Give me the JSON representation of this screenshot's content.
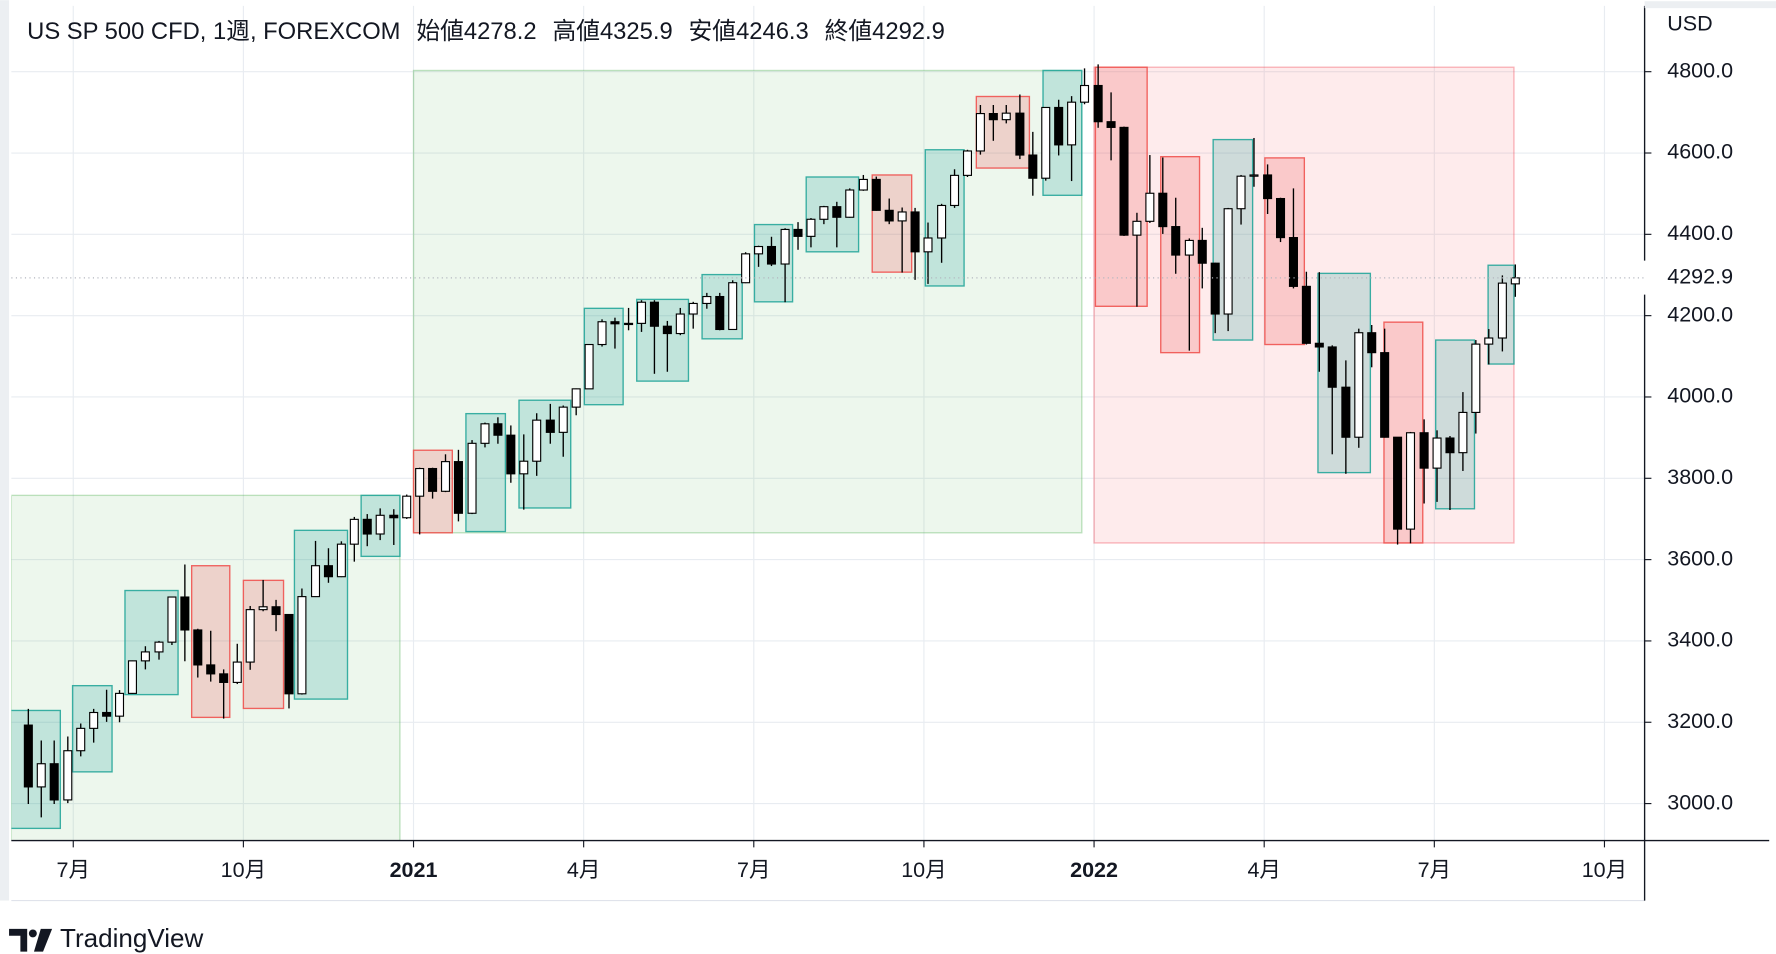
{
  "chart_data": {
    "type": "candlestick",
    "title": "US SP 500 CFD, 1週, FOREXCOM",
    "legend_labels": [
      "始値",
      "高値",
      "安値",
      "終値"
    ],
    "currency": "USD",
    "watermark": "TradingView",
    "x": [
      2020.434,
      2020.453,
      2020.472,
      2020.492,
      2020.511,
      2020.53,
      2020.549,
      2020.568,
      2020.587,
      2020.606,
      2020.626,
      2020.645,
      2020.664,
      2020.683,
      2020.702,
      2020.721,
      2020.741,
      2020.76,
      2020.779,
      2020.798,
      2020.817,
      2020.836,
      2020.856,
      2020.875,
      2020.894,
      2020.913,
      2020.932,
      2020.951,
      2020.971,
      2020.99,
      2021.009,
      2021.028,
      2021.047,
      2021.066,
      2021.086,
      2021.105,
      2021.124,
      2021.143,
      2021.162,
      2021.181,
      2021.201,
      2021.22,
      2021.239,
      2021.258,
      2021.277,
      2021.296,
      2021.316,
      2021.335,
      2021.354,
      2021.373,
      2021.392,
      2021.411,
      2021.431,
      2021.45,
      2021.469,
      2021.488,
      2021.507,
      2021.526,
      2021.546,
      2021.565,
      2021.584,
      2021.603,
      2021.622,
      2021.641,
      2021.661,
      2021.68,
      2021.699,
      2021.718,
      2021.737,
      2021.756,
      2021.776,
      2021.795,
      2021.814,
      2021.833,
      2021.852,
      2021.871,
      2021.891,
      2021.91,
      2021.929,
      2021.948,
      2021.967,
      2021.986,
      2022.006,
      2022.025,
      2022.044,
      2022.063,
      2022.082,
      2022.101,
      2022.12,
      2022.14,
      2022.159,
      2022.178,
      2022.197,
      2022.216,
      2022.235,
      2022.255,
      2022.274,
      2022.293,
      2022.312,
      2022.331,
      2022.35,
      2022.37,
      2022.389,
      2022.408,
      2022.427,
      2022.446,
      2022.465,
      2022.485,
      2022.504,
      2022.523,
      2022.542,
      2022.561,
      2022.58,
      2022.6,
      2022.619
    ],
    "ohlc": [
      [
        3193,
        3233,
        2999,
        3041
      ],
      [
        3041,
        3155,
        2966,
        3098
      ],
      [
        3098,
        3155,
        2999,
        3009
      ],
      [
        3009,
        3165,
        3001,
        3130
      ],
      [
        3130,
        3197,
        3116,
        3185
      ],
      [
        3185,
        3233,
        3150,
        3224
      ],
      [
        3224,
        3280,
        3201,
        3215
      ],
      [
        3215,
        3279,
        3200,
        3271
      ],
      [
        3271,
        3352,
        3270,
        3351
      ],
      [
        3351,
        3387,
        3330,
        3373
      ],
      [
        3373,
        3400,
        3354,
        3397
      ],
      [
        3397,
        3509,
        3390,
        3508
      ],
      [
        3508,
        3588,
        3350,
        3427
      ],
      [
        3427,
        3430,
        3310,
        3341
      ],
      [
        3341,
        3425,
        3300,
        3319
      ],
      [
        3319,
        3330,
        3209,
        3298
      ],
      [
        3298,
        3393,
        3294,
        3348
      ],
      [
        3348,
        3486,
        3329,
        3477
      ],
      [
        3477,
        3550,
        3473,
        3484
      ],
      [
        3484,
        3501,
        3424,
        3465
      ],
      [
        3465,
        3466,
        3234,
        3270
      ],
      [
        3270,
        3529,
        3268,
        3509
      ],
      [
        3509,
        3646,
        3508,
        3585
      ],
      [
        3585,
        3628,
        3543,
        3558
      ],
      [
        3558,
        3645,
        3557,
        3638
      ],
      [
        3638,
        3705,
        3595,
        3699
      ],
      [
        3699,
        3712,
        3633,
        3663
      ],
      [
        3663,
        3726,
        3648,
        3709
      ],
      [
        3709,
        3724,
        3636,
        3703
      ],
      [
        3703,
        3760,
        3700,
        3756
      ],
      [
        3756,
        3826,
        3662,
        3824
      ],
      [
        3824,
        3826,
        3750,
        3768
      ],
      [
        3768,
        3859,
        3766,
        3841
      ],
      [
        3841,
        3870,
        3694,
        3714
      ],
      [
        3714,
        3894,
        3712,
        3886
      ],
      [
        3886,
        3937,
        3876,
        3934
      ],
      [
        3934,
        3950,
        3885,
        3906
      ],
      [
        3906,
        3930,
        3789,
        3811
      ],
      [
        3811,
        3908,
        3723,
        3842
      ],
      [
        3842,
        3960,
        3806,
        3943
      ],
      [
        3943,
        3983,
        3885,
        3913
      ],
      [
        3913,
        3979,
        3853,
        3975
      ],
      [
        3975,
        4021,
        3955,
        4020
      ],
      [
        4020,
        4130,
        4020,
        4129
      ],
      [
        4129,
        4191,
        4124,
        4185
      ],
      [
        4185,
        4195,
        4119,
        4180
      ],
      [
        4180,
        4219,
        4164,
        4181
      ],
      [
        4181,
        4238,
        4160,
        4233
      ],
      [
        4233,
        4238,
        4057,
        4174
      ],
      [
        4174,
        4187,
        4062,
        4156
      ],
      [
        4156,
        4219,
        4152,
        4204
      ],
      [
        4204,
        4234,
        4168,
        4230
      ],
      [
        4230,
        4256,
        4217,
        4247
      ],
      [
        4247,
        4256,
        4164,
        4166
      ],
      [
        4166,
        4287,
        4165,
        4281
      ],
      [
        4281,
        4356,
        4280,
        4352
      ],
      [
        4352,
        4372,
        4320,
        4370
      ],
      [
        4370,
        4394,
        4322,
        4327
      ],
      [
        4327,
        4415,
        4233,
        4412
      ],
      [
        4412,
        4430,
        4362,
        4395
      ],
      [
        4395,
        4440,
        4368,
        4437
      ],
      [
        4437,
        4470,
        4425,
        4468
      ],
      [
        4468,
        4480,
        4368,
        4442
      ],
      [
        4442,
        4513,
        4441,
        4509
      ],
      [
        4509,
        4546,
        4507,
        4535
      ],
      [
        4535,
        4542,
        4458,
        4459
      ],
      [
        4459,
        4488,
        4425,
        4433
      ],
      [
        4433,
        4466,
        4306,
        4455
      ],
      [
        4455,
        4465,
        4288,
        4357
      ],
      [
        4357,
        4429,
        4278,
        4391
      ],
      [
        4391,
        4475,
        4330,
        4471
      ],
      [
        4471,
        4560,
        4465,
        4545
      ],
      [
        4545,
        4608,
        4541,
        4605
      ],
      [
        4605,
        4718,
        4596,
        4697
      ],
      [
        4697,
        4718,
        4630,
        4682
      ],
      [
        4682,
        4718,
        4673,
        4698
      ],
      [
        4698,
        4744,
        4585,
        4595
      ],
      [
        4595,
        4652,
        4495,
        4538
      ],
      [
        4538,
        4713,
        4532,
        4712
      ],
      [
        4712,
        4731,
        4594,
        4620
      ],
      [
        4620,
        4740,
        4531,
        4725
      ],
      [
        4725,
        4808,
        4720,
        4766
      ],
      [
        4766,
        4818,
        4662,
        4677
      ],
      [
        4677,
        4749,
        4582,
        4663
      ],
      [
        4663,
        4665,
        4396,
        4398
      ],
      [
        4398,
        4453,
        4222,
        4432
      ],
      [
        4432,
        4595,
        4428,
        4501
      ],
      [
        4501,
        4589,
        4401,
        4419
      ],
      [
        4419,
        4490,
        4303,
        4349
      ],
      [
        4349,
        4390,
        4114,
        4385
      ],
      [
        4385,
        4416,
        4267,
        4329
      ],
      [
        4329,
        4330,
        4157,
        4204
      ],
      [
        4204,
        4465,
        4162,
        4463
      ],
      [
        4463,
        4546,
        4424,
        4543
      ],
      [
        4543,
        4637,
        4517,
        4546
      ],
      [
        4546,
        4572,
        4450,
        4488
      ],
      [
        4488,
        4490,
        4381,
        4392
      ],
      [
        4392,
        4513,
        4267,
        4272
      ],
      [
        4272,
        4308,
        4129,
        4132
      ],
      [
        4132,
        4307,
        4062,
        4123
      ],
      [
        4123,
        4127,
        3859,
        4024
      ],
      [
        4024,
        4090,
        3811,
        3901
      ],
      [
        3901,
        4168,
        3875,
        4158
      ],
      [
        4158,
        4177,
        4073,
        4109
      ],
      [
        4109,
        4168,
        3900,
        3901
      ],
      [
        3901,
        3901,
        3637,
        3675
      ],
      [
        3675,
        3914,
        3640,
        3912
      ],
      [
        3912,
        3945,
        3738,
        3825
      ],
      [
        3825,
        3918,
        3742,
        3899
      ],
      [
        3899,
        3904,
        3722,
        3863
      ],
      [
        3863,
        4012,
        3818,
        3962
      ],
      [
        3962,
        4140,
        3910,
        4130
      ],
      [
        4130,
        4167,
        4080,
        4145
      ],
      [
        4145,
        4299,
        4112,
        4280
      ],
      [
        4278.2,
        4325.9,
        4246.3,
        4292.9
      ]
    ],
    "up_color": "#ffffff",
    "down_color": "#000000",
    "wick_color": "#000000",
    "xlim": [
      2020.409,
      2022.809
    ],
    "ylim": [
      2909,
      4962
    ],
    "xticks": [
      {
        "value": 2020.5,
        "label": "7月"
      },
      {
        "value": 2020.75,
        "label": "10月"
      },
      2021,
      {
        "value": 2021.25,
        "label": "4月"
      },
      {
        "value": 2021.5,
        "label": "7月"
      },
      {
        "value": 2021.75,
        "label": "10月"
      },
      2022,
      {
        "value": 2022.25,
        "label": "4月"
      },
      {
        "value": 2022.5,
        "label": "7月"
      },
      {
        "value": 2022.75,
        "label": "10月"
      }
    ],
    "yticks": [
      {
        "value": 3000,
        "label": "3000.0"
      },
      {
        "value": 3200,
        "label": "3200.0"
      },
      {
        "value": 3400,
        "label": "3400.0"
      },
      {
        "value": 3600,
        "label": "3600.0"
      },
      {
        "value": 3800,
        "label": "3800.0"
      },
      {
        "value": 4000,
        "label": "4000.0"
      },
      {
        "value": 4200,
        "label": "4200.0"
      },
      {
        "value": 4400,
        "label": "4400.0"
      },
      {
        "value": 4600,
        "label": "4600.0"
      },
      {
        "value": 4800,
        "label": "4800.0"
      }
    ],
    "grid": true,
    "year_boxes": [
      {
        "x": [
          2020.409,
          2020.98
        ],
        "y": [
          2900,
          3758
        ],
        "color": "#4caf50"
      },
      {
        "x": [
          2021.0,
          2021.982
        ],
        "y": [
          3666,
          4803
        ],
        "color": "#4caf50"
      },
      {
        "x": [
          2022.0,
          2022.617
        ],
        "y": [
          3641,
          4811
        ],
        "color": "#f23645"
      }
    ],
    "month_boxes": [
      {
        "x": [
          2020.406,
          2020.481
        ],
        "y": [
          2939,
          3229
        ],
        "color": "#26a69a"
      },
      {
        "x": [
          2020.499,
          2020.557
        ],
        "y": [
          3078,
          3290
        ],
        "color": "#26a69a"
      },
      {
        "x": [
          2020.576,
          2020.654
        ],
        "y": [
          3268,
          3524
        ],
        "color": "#26a69a"
      },
      {
        "x": [
          2020.674,
          2020.73
        ],
        "y": [
          3212,
          3585
        ],
        "color": "#ef5350"
      },
      {
        "x": [
          2020.75,
          2020.809
        ],
        "y": [
          3234,
          3549
        ],
        "color": "#ef5350"
      },
      {
        "x": [
          2020.825,
          2020.903
        ],
        "y": [
          3257,
          3672
        ],
        "color": "#26a69a"
      },
      {
        "x": [
          2020.923,
          2020.98
        ],
        "y": [
          3608,
          3758
        ],
        "color": "#26a69a"
      },
      {
        "x": [
          2021.0,
          2021.057
        ],
        "y": [
          3666,
          3869
        ],
        "color": "#ef5350"
      },
      {
        "x": [
          2021.077,
          2021.135
        ],
        "y": [
          3669,
          3959
        ],
        "color": "#26a69a"
      },
      {
        "x": [
          2021.155,
          2021.231
        ],
        "y": [
          3727,
          3992
        ],
        "color": "#26a69a"
      },
      {
        "x": [
          2021.251,
          2021.308
        ],
        "y": [
          3981,
          4218
        ],
        "color": "#26a69a"
      },
      {
        "x": [
          2021.328,
          2021.404
        ],
        "y": [
          4039,
          4240
        ],
        "color": "#26a69a"
      },
      {
        "x": [
          2021.424,
          2021.483
        ],
        "y": [
          4143,
          4301
        ],
        "color": "#26a69a"
      },
      {
        "x": [
          2021.501,
          2021.557
        ],
        "y": [
          4234,
          4424
        ],
        "color": "#26a69a"
      },
      {
        "x": [
          2021.577,
          2021.654
        ],
        "y": [
          4357,
          4541
        ],
        "color": "#26a69a"
      },
      {
        "x": [
          2021.674,
          2021.732
        ],
        "y": [
          4307,
          4546
        ],
        "color": "#ef5350"
      },
      {
        "x": [
          2021.752,
          2021.809
        ],
        "y": [
          4273,
          4608
        ],
        "color": "#26a69a"
      },
      {
        "x": [
          2021.827,
          2021.905
        ],
        "y": [
          4563,
          4739
        ],
        "color": "#ef5350"
      },
      {
        "x": [
          2021.925,
          2021.982
        ],
        "y": [
          4496,
          4803
        ],
        "color": "#26a69a"
      },
      {
        "x": [
          2022.002,
          2022.078
        ],
        "y": [
          4223,
          4811
        ],
        "color": "#ef5350"
      },
      {
        "x": [
          2022.098,
          2022.155
        ],
        "y": [
          4109,
          4591
        ],
        "color": "#ef5350"
      },
      {
        "x": [
          2022.175,
          2022.233
        ],
        "y": [
          4140,
          4633
        ],
        "color": "#26a69a"
      },
      {
        "x": [
          2022.251,
          2022.309
        ],
        "y": [
          4129,
          4588
        ],
        "color": "#ef5350"
      },
      {
        "x": [
          2022.329,
          2022.406
        ],
        "y": [
          3814,
          4304
        ],
        "color": "#26a69a"
      },
      {
        "x": [
          2022.426,
          2022.483
        ],
        "y": [
          3641,
          4184
        ],
        "color": "#ef5350"
      },
      {
        "x": [
          2022.502,
          2022.559
        ],
        "y": [
          3725,
          4140
        ],
        "color": "#26a69a"
      },
      {
        "x": [
          2022.579,
          2022.617
        ],
        "y": [
          4081,
          4324
        ],
        "color": "#26a69a"
      }
    ]
  }
}
